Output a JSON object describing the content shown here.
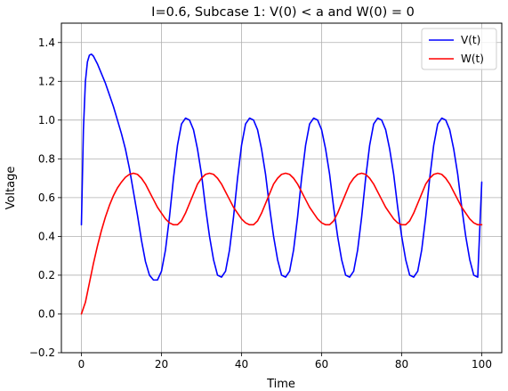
{
  "chart_data": {
    "type": "line",
    "title": "I=0.6, Subcase 1: V(0) < a and W(0) = 0",
    "xlabel": "Time",
    "ylabel": "Voltage",
    "xlim": [
      -5,
      105
    ],
    "ylim": [
      -0.2,
      1.5
    ],
    "xticks": [
      "0",
      "20",
      "40",
      "60",
      "80",
      "100"
    ],
    "yticks": [
      "−0.2",
      "0.0",
      "0.2",
      "0.4",
      "0.6",
      "0.8",
      "1.0",
      "1.2",
      "1.4"
    ],
    "grid": true,
    "legend_position": "top-right",
    "series": [
      {
        "name": "V(t)",
        "color": "#0000ff",
        "x": [
          0,
          0.5,
          1,
          1.5,
          2,
          2.5,
          3,
          4,
          5,
          6,
          7,
          8,
          9,
          10,
          11,
          12,
          13,
          14,
          15,
          16,
          17,
          18,
          19,
          20,
          21,
          22,
          23,
          24,
          25,
          26,
          27,
          28,
          29,
          30,
          31,
          32,
          33,
          34,
          35,
          36,
          37,
          38,
          39,
          40,
          41,
          42,
          43,
          44,
          45,
          46,
          47,
          48,
          49,
          50,
          51,
          52,
          53,
          54,
          55,
          56,
          57,
          58,
          59,
          60,
          61,
          62,
          63,
          64,
          65,
          66,
          67,
          68,
          69,
          70,
          71,
          72,
          73,
          74,
          75,
          76,
          77,
          78,
          79,
          80,
          81,
          82,
          83,
          84,
          85,
          86,
          87,
          88,
          89,
          90,
          91,
          92,
          93,
          94,
          95,
          96,
          97,
          98,
          99,
          100
        ],
        "y": [
          0.46,
          0.95,
          1.2,
          1.3,
          1.335,
          1.34,
          1.33,
          1.29,
          1.24,
          1.19,
          1.13,
          1.07,
          1.0,
          0.93,
          0.85,
          0.75,
          0.63,
          0.51,
          0.38,
          0.27,
          0.2,
          0.175,
          0.175,
          0.22,
          0.33,
          0.5,
          0.7,
          0.87,
          0.98,
          1.01,
          1.0,
          0.95,
          0.85,
          0.72,
          0.55,
          0.4,
          0.28,
          0.2,
          0.19,
          0.22,
          0.33,
          0.5,
          0.7,
          0.87,
          0.98,
          1.01,
          1.0,
          0.95,
          0.85,
          0.72,
          0.55,
          0.4,
          0.28,
          0.2,
          0.19,
          0.22,
          0.33,
          0.5,
          0.7,
          0.87,
          0.98,
          1.01,
          1.0,
          0.95,
          0.85,
          0.72,
          0.55,
          0.4,
          0.28,
          0.2,
          0.19,
          0.22,
          0.33,
          0.5,
          0.7,
          0.87,
          0.98,
          1.01,
          1.0,
          0.95,
          0.85,
          0.72,
          0.55,
          0.4,
          0.28,
          0.2,
          0.19,
          0.22,
          0.33,
          0.5,
          0.7,
          0.87,
          0.98,
          1.01,
          1.0,
          0.95,
          0.85,
          0.72,
          0.55,
          0.4,
          0.28,
          0.2,
          0.19,
          0.68
        ]
      },
      {
        "name": "W(t)",
        "color": "#ff0000",
        "x": [
          0,
          1,
          2,
          3,
          4,
          5,
          6,
          7,
          8,
          9,
          10,
          11,
          12,
          13,
          14,
          15,
          16,
          17,
          18,
          19,
          20,
          21,
          22,
          23,
          24,
          25,
          26,
          27,
          28,
          29,
          30,
          31,
          32,
          33,
          34,
          35,
          36,
          37,
          38,
          39,
          40,
          41,
          42,
          43,
          44,
          45,
          46,
          47,
          48,
          49,
          50,
          51,
          52,
          53,
          54,
          55,
          56,
          57,
          58,
          59,
          60,
          61,
          62,
          63,
          64,
          65,
          66,
          67,
          68,
          69,
          70,
          71,
          72,
          73,
          74,
          75,
          76,
          77,
          78,
          79,
          80,
          81,
          82,
          83,
          84,
          85,
          86,
          87,
          88,
          89,
          90,
          91,
          92,
          93,
          94,
          95,
          96,
          97,
          98,
          99,
          100
        ],
        "y": [
          0.0,
          0.06,
          0.16,
          0.26,
          0.35,
          0.43,
          0.5,
          0.56,
          0.61,
          0.65,
          0.68,
          0.705,
          0.72,
          0.726,
          0.72,
          0.7,
          0.67,
          0.63,
          0.59,
          0.55,
          0.52,
          0.49,
          0.47,
          0.46,
          0.46,
          0.48,
          0.52,
          0.57,
          0.62,
          0.67,
          0.7,
          0.72,
          0.726,
          0.72,
          0.7,
          0.67,
          0.63,
          0.59,
          0.55,
          0.52,
          0.49,
          0.47,
          0.46,
          0.46,
          0.48,
          0.52,
          0.57,
          0.62,
          0.67,
          0.7,
          0.72,
          0.726,
          0.72,
          0.7,
          0.67,
          0.63,
          0.59,
          0.55,
          0.52,
          0.49,
          0.47,
          0.46,
          0.46,
          0.48,
          0.52,
          0.57,
          0.62,
          0.67,
          0.7,
          0.72,
          0.726,
          0.72,
          0.7,
          0.67,
          0.63,
          0.59,
          0.55,
          0.52,
          0.49,
          0.47,
          0.46,
          0.46,
          0.48,
          0.52,
          0.57,
          0.62,
          0.67,
          0.7,
          0.72,
          0.726,
          0.72,
          0.7,
          0.67,
          0.63,
          0.59,
          0.55,
          0.52,
          0.49,
          0.47,
          0.46,
          0.46
        ]
      }
    ]
  }
}
